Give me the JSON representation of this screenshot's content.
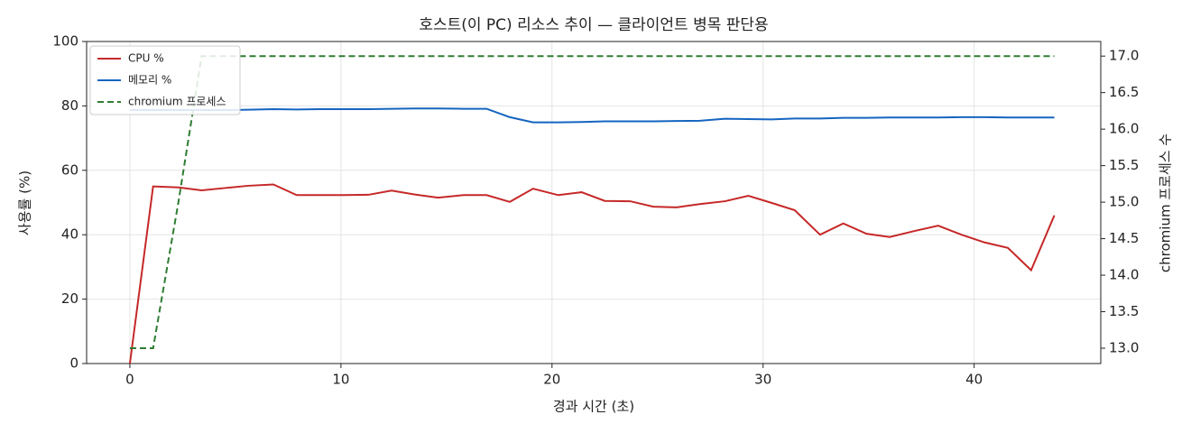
{
  "chart_data": {
    "type": "line",
    "title": "호스트(이 PC) 리소스 추이 — 클라이언트 병목 판단용",
    "x_label": "경과 시간 (초)",
    "y_label": "사용률 (%)",
    "y2_label": "chromium 프로세스 수",
    "x": [
      0,
      1.1,
      2.3,
      3.4,
      4.5,
      5.6,
      6.8,
      7.9,
      9.0,
      10.1,
      11.3,
      12.4,
      13.5,
      14.6,
      15.8,
      16.9,
      18.0,
      19.1,
      20.3,
      21.4,
      22.5,
      23.7,
      24.8,
      25.9,
      27.0,
      28.2,
      29.3,
      30.4,
      31.5,
      32.7,
      33.8,
      34.9,
      36.0,
      37.2,
      38.3,
      39.4,
      40.5,
      41.6,
      42.7,
      43.8
    ],
    "series": [
      {
        "name": "CPU %",
        "color": "#c62828",
        "linestyle": "solid",
        "values": [
          0,
          55,
          54.7,
          53.8,
          54.5,
          55.2,
          55.6,
          52.3,
          52.3,
          52.3,
          52.4,
          53.7,
          52.5,
          51.5,
          52.3,
          52.3,
          50.2,
          54.3,
          52.3,
          53.2,
          50.5,
          50.4,
          48.7,
          48.5,
          49.5,
          50.4,
          52.1,
          49.9,
          47.6,
          40,
          43.5,
          40.3,
          39.3,
          41.2,
          42.8,
          40,
          37.6,
          35.9,
          29,
          46
        ]
      },
      {
        "name": "메모리 %",
        "color": "#1565c0",
        "linestyle": "solid",
        "values": [
          78.7,
          78.7,
          78.7,
          78.7,
          78.7,
          78.8,
          79,
          78.9,
          79,
          79,
          79,
          79.1,
          79.2,
          79.2,
          79.1,
          79.1,
          76.5,
          74.9,
          74.9,
          75,
          75.2,
          75.2,
          75.2,
          75.3,
          75.4,
          76,
          75.9,
          75.8,
          76.1,
          76.1,
          76.3,
          76.3,
          76.4,
          76.4,
          76.4,
          76.5,
          76.5,
          76.4,
          76.4,
          76.4
        ]
      },
      {
        "name": "chromium 프로세스",
        "color": "#2e7d32",
        "linestyle": "dashed",
        "axis": "y2",
        "values": [
          13,
          13,
          15,
          17,
          17,
          17,
          17,
          17,
          17,
          17,
          17,
          17,
          17,
          17,
          17,
          17,
          17,
          17,
          17,
          17,
          17,
          17,
          17,
          17,
          17,
          17,
          17,
          17,
          17,
          17,
          17,
          17,
          17,
          17,
          17,
          17,
          17,
          17,
          17,
          17
        ]
      }
    ],
    "xlim": [
      -2.05,
      46.0
    ],
    "xticks": [
      0,
      10,
      20,
      30,
      40
    ],
    "ylim": [
      0,
      100
    ],
    "yticks": [
      0,
      20,
      40,
      60,
      80,
      100
    ],
    "y2lim": [
      12.79,
      17.2
    ],
    "y2ticks": [
      {
        "value": 13,
        "label": "13.0"
      },
      13.5,
      {
        "value": 14,
        "label": "14.0"
      },
      14.5,
      {
        "value": 15,
        "label": "15.0"
      },
      15.5,
      {
        "value": 16,
        "label": "16.0"
      },
      16.5,
      {
        "value": 17,
        "label": "17.0"
      }
    ],
    "grid": true,
    "legend": "upper left"
  }
}
